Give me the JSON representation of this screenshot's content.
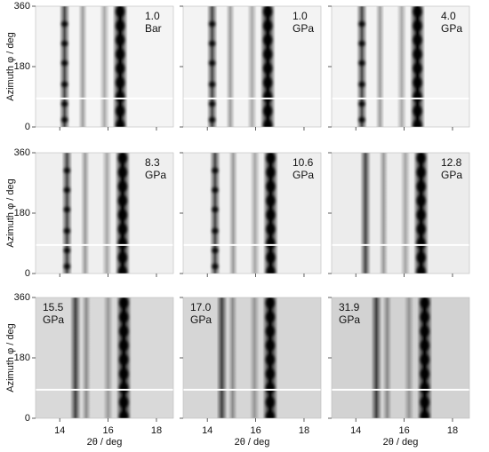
{
  "figure": {
    "y_label": "Azimuth φ / deg",
    "x_label": "2θ / deg",
    "xlim": [
      13,
      18.7
    ],
    "xticks": [
      14,
      16,
      18
    ],
    "ylim": [
      0,
      360
    ],
    "yticks": [
      0,
      180,
      360
    ],
    "panels": [
      {
        "label": [
          "1.0",
          "Bar"
        ]
      },
      {
        "label": [
          "1.0",
          "GPa"
        ]
      },
      {
        "label": [
          "4.0",
          "GPa"
        ]
      },
      {
        "label": [
          "8.3",
          "GPa"
        ]
      },
      {
        "label": [
          "10.6",
          "GPa"
        ]
      },
      {
        "label": [
          "12.8",
          "GPa"
        ]
      },
      {
        "label": [
          "15.5",
          "GPa"
        ]
      },
      {
        "label": [
          "17.0",
          "GPa"
        ]
      },
      {
        "label": [
          "31.9",
          "GPa"
        ]
      }
    ]
  }
}
